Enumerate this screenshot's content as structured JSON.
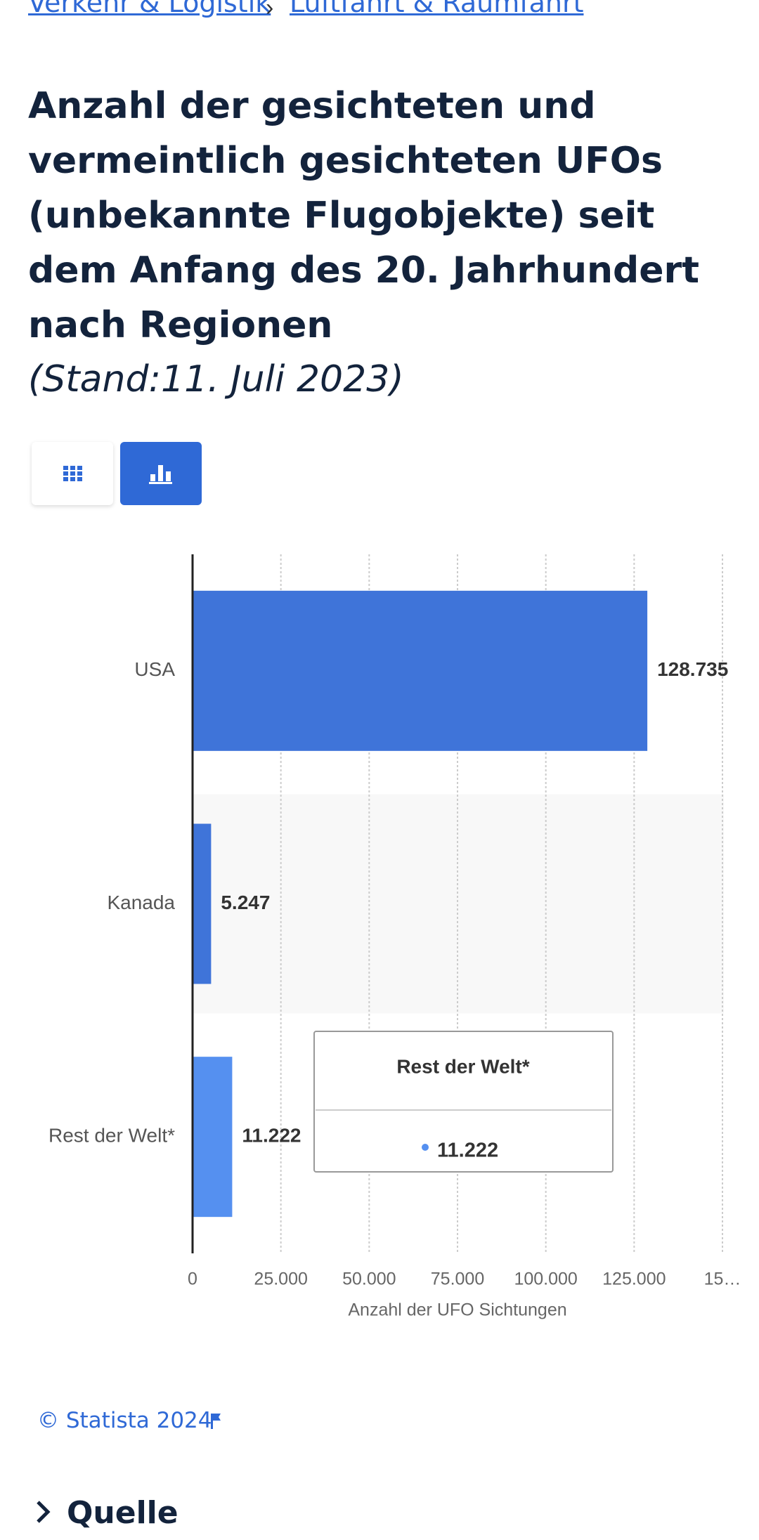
{
  "breadcrumb": [
    "Verkehr & Logistik",
    "Luftfahrt & Raumfahrt"
  ],
  "title": "Anzahl der gesichteten und vermeintlich gesichteten UFOs (unbekannte Flugobjekte) seit dem Anfang des 20. Jahrhundert nach Regionen",
  "subtitle": "(Stand:11. Juli 2023)",
  "chart_data": {
    "type": "hbar",
    "categories": [
      "USA",
      "Kanada",
      "Rest der Welt*"
    ],
    "values": [
      128735,
      5247,
      11222
    ],
    "value_labels": [
      "128.735",
      "5.247",
      "11.222"
    ],
    "colors": [
      "#3f74d9",
      "#3f74d9",
      "#5590f0"
    ],
    "xlabel": "Anzahl der UFO Sichtungen",
    "xlim": [
      0,
      150000
    ],
    "xticks": [
      0,
      {
        "value": 25000,
        "label": "25.000"
      },
      {
        "value": 50000,
        "label": "50.000"
      },
      {
        "value": 75000,
        "label": "75.000"
      },
      {
        "value": 100000,
        "label": "100.000"
      },
      {
        "value": 125000,
        "label": "125.000"
      },
      {
        "value": 150000,
        "label": "15…"
      }
    ],
    "grid": true
  },
  "footer": {
    "copyright": "© Statista 2024",
    "source_heading": "Quelle"
  }
}
